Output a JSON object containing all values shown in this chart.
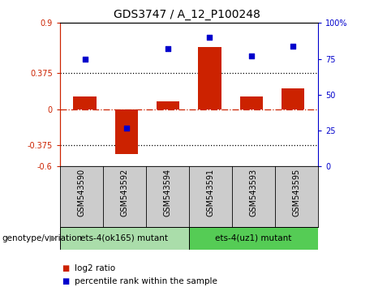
{
  "title": "GDS3747 / A_12_P100248",
  "categories": [
    "GSM543590",
    "GSM543592",
    "GSM543594",
    "GSM543591",
    "GSM543593",
    "GSM543595"
  ],
  "log2_ratio": [
    0.13,
    -0.47,
    0.08,
    0.65,
    0.13,
    0.22
  ],
  "percentile_rank": [
    75,
    27,
    82,
    90,
    77,
    84
  ],
  "bar_color": "#cc2200",
  "dot_color": "#0000cc",
  "ylim_left": [
    -0.6,
    0.9
  ],
  "ylim_right": [
    0,
    100
  ],
  "yticks_left": [
    -0.6,
    -0.375,
    0,
    0.375,
    0.9
  ],
  "yticks_right": [
    0,
    25,
    50,
    75,
    100
  ],
  "hline_dotted": [
    0.375,
    -0.375
  ],
  "hline_dashed": 0.0,
  "group1_label": "ets-4(ok165) mutant",
  "group2_label": "ets-4(uz1) mutant",
  "group1_indices": [
    0,
    1,
    2
  ],
  "group2_indices": [
    3,
    4,
    5
  ],
  "group1_color": "#aaddaa",
  "group2_color": "#55cc55",
  "genotype_label": "genotype/variation",
  "legend_bar_label": "log2 ratio",
  "legend_dot_label": "percentile rank within the sample",
  "title_fontsize": 10,
  "tick_fontsize": 7,
  "label_fontsize": 7.5
}
